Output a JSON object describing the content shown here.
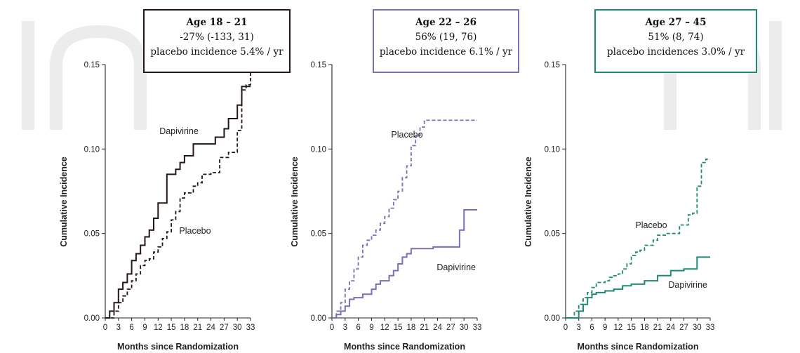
{
  "chart_data": [
    {
      "type": "line",
      "title_lines": [
        "Age 18 – 21",
        "-27% (-133, 31)",
        "placebo incidence 5.4% / yr"
      ],
      "xlabel": "Months since Randomization",
      "ylabel": "Cumulative Incidence",
      "xlim": [
        0,
        33
      ],
      "ylim": [
        0,
        0.15
      ],
      "x_ticks": [
        "0",
        "3",
        "6",
        "9",
        "12",
        "15",
        "18",
        "21",
        "24",
        "27",
        "30",
        "33"
      ],
      "y_ticks": [
        "0.00",
        "0.05",
        "0.10",
        "0.15"
      ],
      "color": "#231815",
      "box_fill": "#ffffff",
      "series": [
        {
          "name": "Dapivirine",
          "line_style": "solid",
          "x": [
            0,
            1,
            2,
            3,
            4,
            5,
            6,
            7,
            8,
            9,
            10,
            11,
            12,
            14,
            15,
            16,
            17,
            18,
            20,
            21,
            23,
            25,
            27,
            28,
            30,
            31,
            33
          ],
          "y": [
            0,
            0.004,
            0.009,
            0.017,
            0.021,
            0.026,
            0.034,
            0.038,
            0.043,
            0.048,
            0.052,
            0.059,
            0.068,
            0.085,
            0.085,
            0.088,
            0.092,
            0.096,
            0.103,
            0.103,
            0.103,
            0.107,
            0.112,
            0.118,
            0.126,
            0.137,
            0.137
          ]
        },
        {
          "name": "Placebo",
          "line_style": "dashed",
          "x": [
            0,
            2,
            3,
            4,
            5,
            6,
            7,
            8,
            9,
            10,
            11,
            12,
            13,
            14,
            15,
            16,
            17,
            18,
            20,
            21,
            22,
            24,
            26,
            28,
            30,
            31,
            32,
            33
          ],
          "y": [
            0,
            0.004,
            0.009,
            0.013,
            0.017,
            0.022,
            0.026,
            0.031,
            0.034,
            0.035,
            0.039,
            0.042,
            0.047,
            0.051,
            0.058,
            0.063,
            0.071,
            0.074,
            0.078,
            0.08,
            0.085,
            0.086,
            0.095,
            0.098,
            0.111,
            0.135,
            0.138,
            0.145
          ]
        }
      ]
    },
    {
      "type": "line",
      "title_lines": [
        "Age 22 – 26",
        "56% (19, 76)",
        "placebo incidence 6.1% / yr"
      ],
      "xlabel": "Months since Randomization",
      "ylabel": "Cumulative Incidence",
      "xlim": [
        0,
        33
      ],
      "ylim": [
        0,
        0.15
      ],
      "x_ticks": [
        "0",
        "3",
        "6",
        "9",
        "12",
        "15",
        "18",
        "21",
        "24",
        "27",
        "30",
        "33"
      ],
      "y_ticks": [
        "0.00",
        "0.05",
        "0.10",
        "0.15"
      ],
      "color": "#7a70b3",
      "box_fill": "#ffffff",
      "series": [
        {
          "name": "Dapivirine",
          "line_style": "solid",
          "x": [
            0,
            1,
            2,
            3,
            4,
            5,
            7,
            9,
            10,
            11,
            13,
            14,
            15,
            16,
            17,
            18,
            21,
            23,
            26,
            28,
            29,
            30,
            32,
            33
          ],
          "y": [
            0,
            0.002,
            0.004,
            0.007,
            0.011,
            0.012,
            0.014,
            0.017,
            0.02,
            0.022,
            0.025,
            0.028,
            0.032,
            0.036,
            0.038,
            0.041,
            0.041,
            0.042,
            0.042,
            0.042,
            0.052,
            0.064,
            0.064,
            0.064
          ]
        },
        {
          "name": "Placebo",
          "line_style": "dashed",
          "x": [
            0,
            1,
            2,
            3,
            4,
            5,
            6,
            7,
            8,
            9,
            10,
            11,
            12,
            13,
            14,
            15,
            16,
            17,
            18,
            19,
            20,
            21,
            33
          ],
          "y": [
            0,
            0.004,
            0.009,
            0.017,
            0.022,
            0.029,
            0.036,
            0.043,
            0.046,
            0.049,
            0.052,
            0.056,
            0.06,
            0.065,
            0.07,
            0.075,
            0.083,
            0.09,
            0.102,
            0.108,
            0.113,
            0.117,
            0.117
          ]
        }
      ]
    },
    {
      "type": "line",
      "title_lines": [
        "Age 27 – 45",
        "51% (8, 74)",
        "placebo incidences 3.0% / yr"
      ],
      "xlabel": "Months since Randomization",
      "ylabel": "Cumulative Incidence",
      "xlim": [
        0,
        33
      ],
      "ylim": [
        0,
        0.15
      ],
      "x_ticks": [
        "0",
        "3",
        "6",
        "9",
        "12",
        "15",
        "18",
        "21",
        "24",
        "27",
        "30",
        "33"
      ],
      "y_ticks": [
        "0.00",
        "0.05",
        "0.10",
        "0.15"
      ],
      "color": "#1f8a74",
      "box_fill": "#ffffff",
      "series": [
        {
          "name": "Dapivirine",
          "line_style": "solid",
          "x": [
            0,
            3,
            4,
            5,
            6,
            7,
            9,
            11,
            13,
            15,
            18,
            21,
            24,
            27,
            30,
            33
          ],
          "y": [
            0,
            0.004,
            0.008,
            0.012,
            0.014,
            0.015,
            0.016,
            0.017,
            0.019,
            0.02,
            0.022,
            0.025,
            0.028,
            0.029,
            0.036,
            0.036
          ]
        },
        {
          "name": "Placebo",
          "line_style": "dashed",
          "x": [
            0,
            2,
            3,
            4,
            5,
            6,
            7,
            9,
            10,
            11,
            12,
            13,
            14,
            15,
            16,
            17,
            18,
            20,
            21,
            23,
            26,
            28,
            29,
            30,
            31,
            32,
            33
          ],
          "y": [
            0,
            0.004,
            0.008,
            0.012,
            0.015,
            0.018,
            0.021,
            0.022,
            0.024,
            0.025,
            0.026,
            0.029,
            0.032,
            0.037,
            0.039,
            0.04,
            0.043,
            0.046,
            0.049,
            0.05,
            0.055,
            0.061,
            0.062,
            0.078,
            0.092,
            0.094,
            0.094
          ]
        }
      ]
    }
  ]
}
